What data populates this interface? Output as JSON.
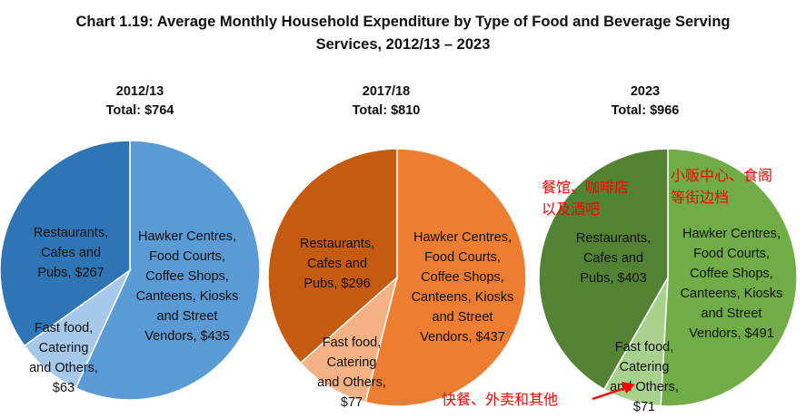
{
  "title_line1": "Chart 1.19: Average Monthly Household Expenditure by Type of Food and Beverage Serving",
  "title_line2": "Services, 2012/13 – 2023",
  "chart_data": [
    {
      "type": "pie",
      "year": "2012/13",
      "total_label": "Total: $764",
      "slices": [
        {
          "name": "Hawker Centres, Food Courts, Coffee Shops, Canteens, Kiosks and Street Vendors",
          "value": 435,
          "label": [
            "Hawker Centres,",
            "Food Courts,",
            "Coffee Shops,",
            "Canteens, Kiosks",
            "and Street",
            "Vendors, $435"
          ],
          "color": "#5b9bd5"
        },
        {
          "name": "Fast food, Catering and Others",
          "value": 63,
          "label": [
            "Fast food,",
            "Catering",
            "and Others,",
            "$63"
          ],
          "color": "#a6c8ea"
        },
        {
          "name": "Restaurants, Cafes and Pubs",
          "value": 267,
          "label": [
            "Restaurants,",
            "Cafes and",
            "Pubs, $267"
          ],
          "color": "#2e75b6"
        }
      ]
    },
    {
      "type": "pie",
      "year": "2017/18",
      "total_label": "Total: $810",
      "slices": [
        {
          "name": "Hawker Centres, Food Courts, Coffee Shops, Canteens, Kiosks and Street Vendors",
          "value": 437,
          "label": [
            "Hawker Centres,",
            "Food Courts,",
            "Coffee Shops,",
            "Canteens, Kiosks",
            "and Street",
            "Vendors, $437"
          ],
          "color": "#ed7d31"
        },
        {
          "name": "Fast food, Catering and Others",
          "value": 77,
          "label": [
            "Fast food,",
            "Catering",
            "and Others,",
            "$77"
          ],
          "color": "#f4b183"
        },
        {
          "name": "Restaurants, Cafes and Pubs",
          "value": 296,
          "label": [
            "Restaurants,",
            "Cafes and",
            "Pubs, $296"
          ],
          "color": "#c55a11"
        }
      ]
    },
    {
      "type": "pie",
      "year": "2023",
      "total_label": "Total: $966",
      "slices": [
        {
          "name": "Hawker Centres, Food Courts, Coffee Shops, Canteens, Kiosks and Street Vendors",
          "value": 491,
          "label": [
            "Hawker Centres,",
            "Food Courts,",
            "Coffee Shops,",
            "Canteens, Kiosks",
            "and Street",
            "Vendors, $491"
          ],
          "color": "#70ad47"
        },
        {
          "name": "Fast food, Catering and Others",
          "value": 71,
          "label": [
            "Fast food,",
            "Catering",
            "and Others,",
            "$71"
          ],
          "color": "#a9d18e"
        },
        {
          "name": "Restaurants, Cafes and Pubs",
          "value": 403,
          "label": [
            "Restaurants,",
            "Cafes and",
            "Pubs, $403"
          ],
          "color": "#548235"
        }
      ]
    }
  ],
  "annotations": {
    "restaurants_zh": [
      "餐馆、咖啡店",
      "以及酒吧"
    ],
    "hawker_zh": [
      "小贩中心、食阁",
      "等街边档"
    ],
    "fastfood_zh": "快餐、外卖和其他",
    "color": "#ff0000"
  }
}
